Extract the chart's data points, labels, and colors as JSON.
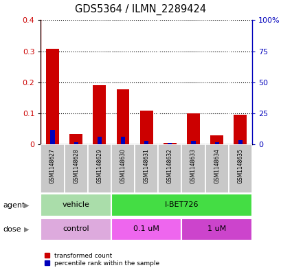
{
  "title": "GDS5364 / ILMN_2289424",
  "samples": [
    "GSM1148627",
    "GSM1148628",
    "GSM1148629",
    "GSM1148630",
    "GSM1148631",
    "GSM1148632",
    "GSM1148633",
    "GSM1148634",
    "GSM1148635"
  ],
  "red_values": [
    0.308,
    0.033,
    0.19,
    0.178,
    0.11,
    0.005,
    0.1,
    0.03,
    0.095
  ],
  "blue_values": [
    0.046,
    0.008,
    0.026,
    0.026,
    0.012,
    0.006,
    0.012,
    0.008,
    0.014
  ],
  "ylim_left": [
    0,
    0.4
  ],
  "ylim_right": [
    0,
    100
  ],
  "yticks_left": [
    0.0,
    0.1,
    0.2,
    0.3,
    0.4
  ],
  "ytick_labels_left": [
    "0",
    "0.1",
    "0.2",
    "0.3",
    "0.4"
  ],
  "yticks_right": [
    0,
    25,
    50,
    75,
    100
  ],
  "ytick_labels_right": [
    "0",
    "25",
    "50",
    "75",
    "100%"
  ],
  "left_color": "#cc0000",
  "right_color": "#0000bb",
  "agent_labels": [
    {
      "text": "vehicle",
      "start": 0,
      "end": 3,
      "color": "#aaddaa"
    },
    {
      "text": "I-BET726",
      "start": 3,
      "end": 9,
      "color": "#44dd44"
    }
  ],
  "dose_labels": [
    {
      "text": "control",
      "start": 0,
      "end": 3,
      "color": "#ddaadd"
    },
    {
      "text": "0.1 uM",
      "start": 3,
      "end": 6,
      "color": "#ee66ee"
    },
    {
      "text": "1 uM",
      "start": 6,
      "end": 9,
      "color": "#cc44cc"
    }
  ],
  "legend_red": "transformed count",
  "legend_blue": "percentile rank within the sample",
  "background_color": "#ffffff",
  "bar_bg_color": "#c8c8c8",
  "red_bar_width": 0.55,
  "blue_bar_width": 0.18
}
